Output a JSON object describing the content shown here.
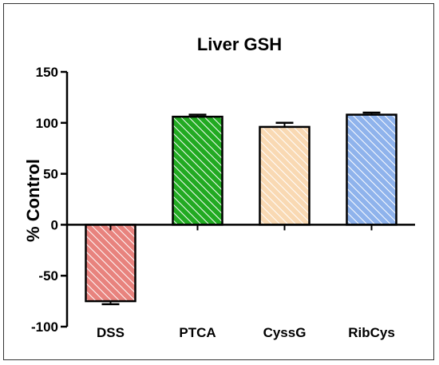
{
  "chart_data": {
    "type": "bar",
    "title": "Liver GSH",
    "ylabel": "% Control",
    "xlabel": "",
    "categories": [
      "DSS",
      "PTCA",
      "CyssG",
      "RibCys"
    ],
    "values": [
      -75,
      106,
      96,
      108
    ],
    "errors": [
      3,
      2,
      4,
      2
    ],
    "colors": [
      "#e8837e",
      "#22aa22",
      "#f9d9b3",
      "#8fb3ec"
    ],
    "ylim": [
      -100,
      150
    ],
    "yticks": [
      150,
      100,
      50,
      0,
      -50,
      -100
    ],
    "grid": false,
    "pattern": "diagonal-hatch"
  }
}
